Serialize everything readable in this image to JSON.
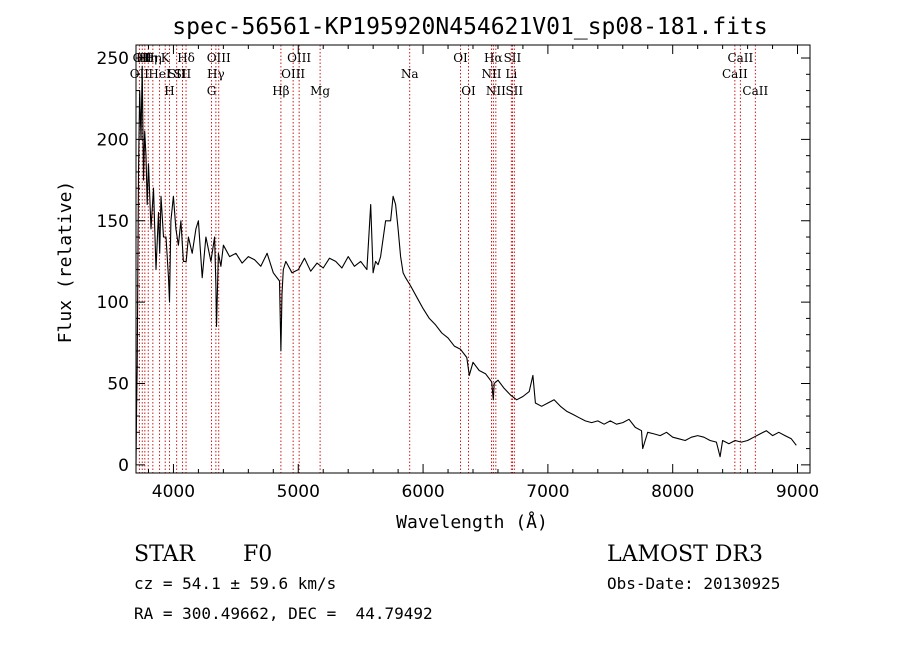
{
  "chart_data": {
    "type": "line",
    "title": "spec-56561-KP195920N454621V01_sp08-181.fits",
    "xlabel": "Wavelength (Å)",
    "ylabel": "Flux (relative)",
    "xlim": [
      3700,
      9100
    ],
    "ylim": [
      -5,
      258
    ],
    "xticks": [
      4000,
      5000,
      6000,
      7000,
      8000,
      9000
    ],
    "xtick_labels": [
      "4000",
      "5000",
      "6000",
      "7000",
      "8000",
      "9000"
    ],
    "yticks": [
      0,
      50,
      100,
      150,
      200,
      250
    ],
    "ytick_labels": [
      "0",
      "50",
      "100",
      "150",
      "200",
      "250"
    ],
    "series": [
      {
        "name": "flux",
        "x": [
          3700,
          3705,
          3710,
          3720,
          3730,
          3740,
          3750,
          3760,
          3770,
          3780,
          3790,
          3800,
          3820,
          3840,
          3860,
          3880,
          3890,
          3900,
          3920,
          3940,
          3960,
          3968,
          3980,
          4000,
          4020,
          4040,
          4060,
          4080,
          4102,
          4120,
          4150,
          4180,
          4200,
          4230,
          4260,
          4300,
          4330,
          4340,
          4345,
          4360,
          4380,
          4400,
          4450,
          4500,
          4550,
          4600,
          4650,
          4700,
          4750,
          4800,
          4850,
          4861,
          4870,
          4880,
          4900,
          4950,
          5000,
          5050,
          5100,
          5150,
          5200,
          5250,
          5300,
          5350,
          5400,
          5450,
          5500,
          5550,
          5580,
          5600,
          5620,
          5640,
          5660,
          5700,
          5740,
          5760,
          5780,
          5800,
          5820,
          5840,
          5860,
          5900,
          5950,
          6000,
          6050,
          6100,
          6150,
          6200,
          6250,
          6300,
          6350,
          6370,
          6400,
          6450,
          6500,
          6550,
          6563,
          6570,
          6600,
          6650,
          6700,
          6750,
          6800,
          6850,
          6880,
          6900,
          6950,
          7000,
          7050,
          7100,
          7150,
          7200,
          7250,
          7300,
          7350,
          7400,
          7450,
          7500,
          7550,
          7600,
          7650,
          7700,
          7750,
          7760,
          7800,
          7850,
          7900,
          7950,
          8000,
          8050,
          8100,
          8150,
          8200,
          8250,
          8300,
          8350,
          8380,
          8400,
          8450,
          8500,
          8550,
          8600,
          8650,
          8700,
          8750,
          8800,
          8850,
          8900,
          8950,
          8990
        ],
        "y": [
          0,
          35,
          60,
          180,
          230,
          200,
          245,
          175,
          205,
          190,
          160,
          185,
          145,
          170,
          120,
          155,
          130,
          165,
          140,
          140,
          115,
          100,
          150,
          165,
          145,
          135,
          150,
          125,
          125,
          140,
          130,
          145,
          150,
          115,
          140,
          125,
          140,
          110,
          85,
          130,
          122,
          135,
          128,
          130,
          124,
          128,
          126,
          122,
          130,
          118,
          113,
          70,
          105,
          120,
          125,
          118,
          120,
          127,
          119,
          124,
          121,
          127,
          125,
          121,
          128,
          122,
          125,
          120,
          160,
          118,
          125,
          123,
          128,
          150,
          150,
          165,
          160,
          145,
          128,
          118,
          115,
          110,
          103,
          96,
          90,
          86,
          81,
          78,
          73,
          71,
          66,
          55,
          63,
          58,
          56,
          51,
          40,
          50,
          52,
          47,
          43,
          40,
          42,
          45,
          55,
          38,
          36,
          38,
          40,
          36,
          33,
          31,
          29,
          27,
          26,
          27,
          25,
          27,
          25,
          26,
          28,
          23,
          21,
          10,
          20,
          19,
          18,
          20,
          17,
          16,
          15,
          17,
          18,
          17,
          15,
          14,
          5,
          15,
          13,
          15,
          14,
          15,
          17,
          19,
          21,
          18,
          20,
          18,
          16,
          12
        ]
      }
    ],
    "lines": [
      {
        "w": 3727,
        "row": 2,
        "label": "OII"
      },
      {
        "w": 3750,
        "row": 1,
        "label": "OII"
      },
      {
        "w": 3771,
        "row": 1,
        "label": "Hθ"
      },
      {
        "w": 3798,
        "row": 1,
        "label": "Hη"
      },
      {
        "w": 3835,
        "row": 1,
        "label": "Hη"
      },
      {
        "w": 3889,
        "row": 2,
        "label": "HeI"
      },
      {
        "w": 3934,
        "row": 1,
        "label": "K"
      },
      {
        "w": 3968,
        "row": 3,
        "label": "H"
      },
      {
        "w": 4026,
        "row": 2,
        "label": "SII"
      },
      {
        "w": 4101,
        "row": 1,
        "label": "Hδ"
      },
      {
        "w": 4072,
        "row": 2,
        "label": "SII"
      },
      {
        "w": 4305,
        "row": 3,
        "label": "G"
      },
      {
        "w": 4340,
        "row": 2,
        "label": "Hγ"
      },
      {
        "w": 4363,
        "row": 1,
        "label": "OIII"
      },
      {
        "w": 4861,
        "row": 3,
        "label": "Hβ"
      },
      {
        "w": 4959,
        "row": 2,
        "label": "OIII"
      },
      {
        "w": 5007,
        "row": 1,
        "label": "OIII"
      },
      {
        "w": 5175,
        "row": 3,
        "label": "Mg"
      },
      {
        "w": 5893,
        "row": 2,
        "label": "Na"
      },
      {
        "w": 6300,
        "row": 1,
        "label": "OI"
      },
      {
        "w": 6364,
        "row": 3,
        "label": "OI"
      },
      {
        "w": 6548,
        "row": 2,
        "label": "NII"
      },
      {
        "w": 6563,
        "row": 1,
        "label": "Hα"
      },
      {
        "w": 6583,
        "row": 3,
        "label": "NII"
      },
      {
        "w": 6707,
        "row": 2,
        "label": "Li"
      },
      {
        "w": 6716,
        "row": 1,
        "label": "SII"
      },
      {
        "w": 6731,
        "row": 3,
        "label": "SII"
      },
      {
        "w": 8498,
        "row": 2,
        "label": "CaII"
      },
      {
        "w": 8542,
        "row": 1,
        "label": "CaII"
      },
      {
        "w": 8662,
        "row": 3,
        "label": "CaII"
      }
    ]
  },
  "info": {
    "class": "STAR",
    "subclass": "F0",
    "survey": "LAMOST DR3",
    "cz": "cz = 54.1 ± 59.6 km/s",
    "obs_date": "Obs-Date: 20130925",
    "coords": "RA = 300.49662, DEC =  44.79492"
  },
  "colors": {
    "spectrum": "#000000",
    "line_marker": "#cc0000",
    "axis": "#000000"
  }
}
